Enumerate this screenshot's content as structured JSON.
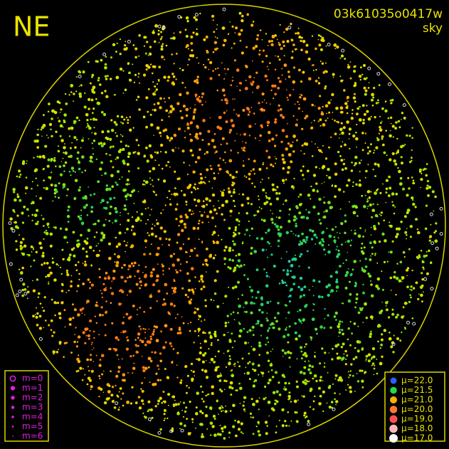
{
  "header": {
    "direction": "NE",
    "frame": "03k61035o0417w",
    "mode": "sky"
  },
  "magnitude_legend": [
    {
      "label": "m=0"
    },
    {
      "label": "m=1"
    },
    {
      "label": "m=2"
    },
    {
      "label": "m=3"
    },
    {
      "label": "m=4"
    },
    {
      "label": "m=5"
    },
    {
      "label": "m=6"
    }
  ],
  "surface_brightness_legend": [
    {
      "label": "μ=22.0",
      "color": "#2f5cff"
    },
    {
      "label": "μ=21.5",
      "color": "#22dd44"
    },
    {
      "label": "μ=21.0",
      "color": "#f2b400"
    },
    {
      "label": "μ=20.0",
      "color": "#ff7a30"
    },
    {
      "label": "μ=19.0",
      "color": "#ff5050"
    },
    {
      "label": "μ=18.0",
      "color": "#ffb8b8"
    },
    {
      "label": "μ=17.0",
      "color": "#ffffff"
    }
  ]
}
